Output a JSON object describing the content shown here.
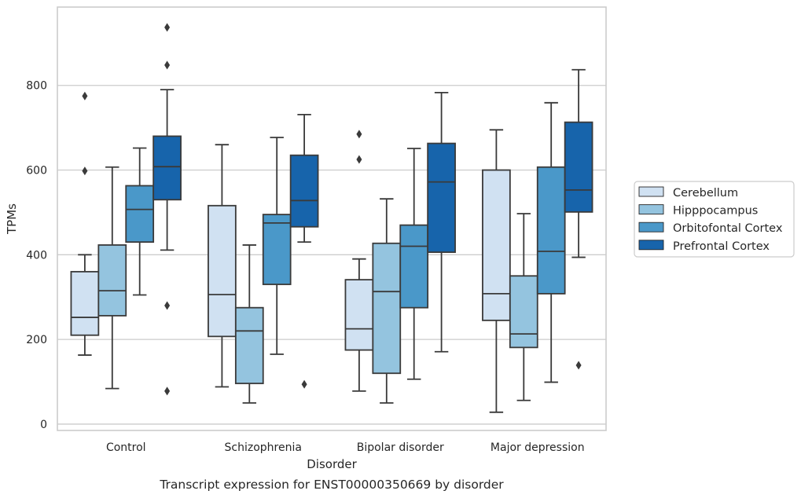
{
  "chart_data": {
    "type": "box",
    "caption": "Transcript expression for ENST00000350669 by disorder",
    "xlabel": "Disorder",
    "ylabel": "TPMs",
    "ylim": [
      -15,
      985
    ],
    "yticks": [
      0,
      200,
      400,
      600,
      800
    ],
    "categories": [
      "Control",
      "Schizophrenia",
      "Bipolar disorder",
      "Major depression"
    ],
    "grid": "horizontal",
    "legend_position": "right",
    "series": [
      {
        "name": "Cerebellum",
        "color": "#d0e1f2",
        "boxes": [
          {
            "whislo": 163,
            "q1": 210,
            "med": 252,
            "q3": 360,
            "whishi": 400,
            "fliers": [
              598,
              775
            ]
          },
          {
            "whislo": 88,
            "q1": 207,
            "med": 306,
            "q3": 516,
            "whishi": 660,
            "fliers": []
          },
          {
            "whislo": 78,
            "q1": 175,
            "med": 225,
            "q3": 341,
            "whishi": 390,
            "fliers": [
              625,
              685
            ]
          },
          {
            "whislo": 28,
            "q1": 245,
            "med": 308,
            "q3": 600,
            "whishi": 695,
            "fliers": []
          }
        ]
      },
      {
        "name": "Hipppocampus",
        "color": "#94c4df",
        "boxes": [
          {
            "whislo": 84,
            "q1": 256,
            "med": 315,
            "q3": 423,
            "whishi": 607,
            "fliers": []
          },
          {
            "whislo": 50,
            "q1": 96,
            "med": 220,
            "q3": 275,
            "whishi": 423,
            "fliers": []
          },
          {
            "whislo": 50,
            "q1": 120,
            "med": 313,
            "q3": 427,
            "whishi": 532,
            "fliers": []
          },
          {
            "whislo": 56,
            "q1": 181,
            "med": 213,
            "q3": 350,
            "whishi": 497,
            "fliers": []
          }
        ]
      },
      {
        "name": "Orbitofontal Cortex",
        "color": "#4a98c9",
        "boxes": [
          {
            "whislo": 305,
            "q1": 430,
            "med": 507,
            "q3": 563,
            "whishi": 652,
            "fliers": []
          },
          {
            "whislo": 165,
            "q1": 330,
            "med": 475,
            "q3": 495,
            "whishi": 677,
            "fliers": []
          },
          {
            "whislo": 106,
            "q1": 275,
            "med": 420,
            "q3": 470,
            "whishi": 651,
            "fliers": []
          },
          {
            "whislo": 99,
            "q1": 308,
            "med": 408,
            "q3": 607,
            "whishi": 759,
            "fliers": []
          }
        ]
      },
      {
        "name": "Prefrontal Cortex",
        "color": "#1764ab",
        "boxes": [
          {
            "whislo": 411,
            "q1": 530,
            "med": 608,
            "q3": 680,
            "whishi": 790,
            "fliers": [
              280,
              78,
              848,
              937
            ]
          },
          {
            "whislo": 430,
            "q1": 466,
            "med": 528,
            "q3": 635,
            "whishi": 731,
            "fliers": [
              94
            ]
          },
          {
            "whislo": 171,
            "q1": 406,
            "med": 572,
            "q3": 663,
            "whishi": 783,
            "fliers": []
          },
          {
            "whislo": 394,
            "q1": 501,
            "med": 553,
            "q3": 713,
            "whishi": 837,
            "fliers": [
              139
            ]
          }
        ]
      }
    ]
  }
}
